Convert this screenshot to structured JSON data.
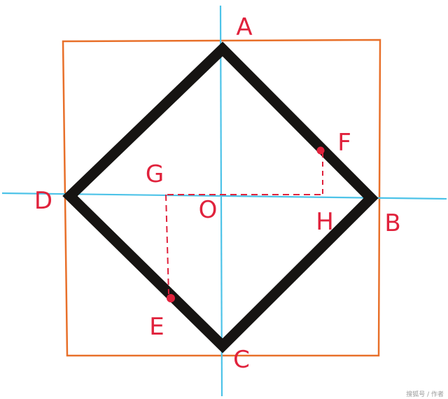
{
  "colors": {
    "square": "#e8702a",
    "axes": "#4dc3e8",
    "rhombus": "#161412",
    "annotation": "#e0223c",
    "watermark": "#9a9a9a"
  },
  "labels": {
    "A": "A",
    "B": "B",
    "C": "C",
    "D": "D",
    "E": "E",
    "F": "F",
    "G": "G",
    "H": "H",
    "O": "O"
  },
  "watermark": "搜狐号 / 作者"
}
